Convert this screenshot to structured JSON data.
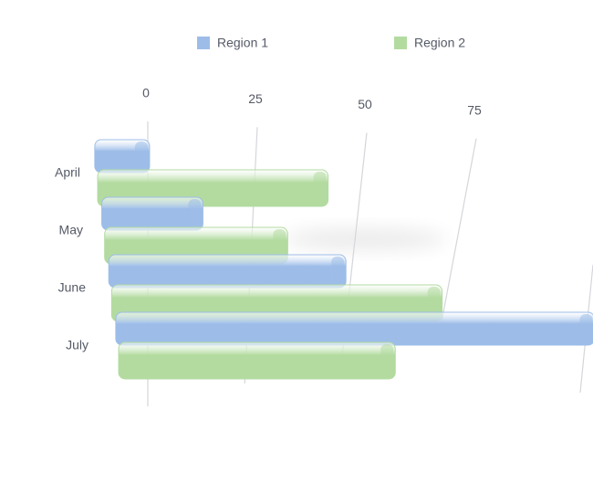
{
  "chart_data": {
    "type": "bar3d_horizontal",
    "categories": [
      "April",
      "May",
      "June",
      "July"
    ],
    "series": [
      {
        "name": "Region 1",
        "color": "#9dbde8",
        "values": [
          13,
          23,
          51,
          98
        ]
      },
      {
        "name": "Region 2",
        "color": "#b3dba0",
        "values": [
          52,
          40,
          69,
          56
        ]
      }
    ],
    "xlim": [
      0,
      100
    ],
    "xticks": [
      0,
      25,
      50,
      75
    ],
    "grid": true,
    "legend": "top"
  }
}
